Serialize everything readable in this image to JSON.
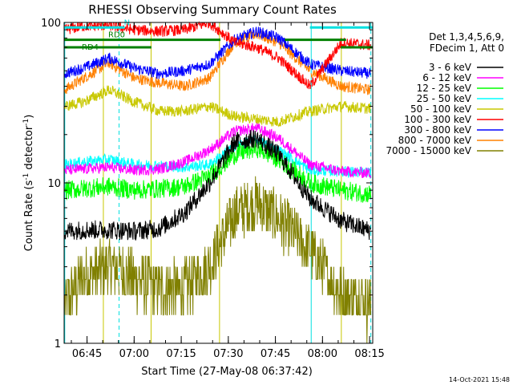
{
  "chart_data": {
    "type": "line",
    "title": "RHESSI Observing Summary Count Rates",
    "xlabel": "Start Time (27-May-08 06:37:42)",
    "ylabel_main": "Count Rate (s",
    "ylabel_sup": "-1",
    "ylabel_mid": " detector",
    "ylabel_end": ")",
    "yscale": "log",
    "ylim": [
      1,
      100
    ],
    "ytick_values": [
      1,
      10,
      100
    ],
    "ytick_labels": [
      "1",
      "10",
      "100"
    ],
    "xlim_minutes": [
      397.7,
      496.0
    ],
    "xtick_minutes": [
      405,
      420,
      435,
      450,
      465,
      480,
      495
    ],
    "xtick_labels": [
      "06:45",
      "07:00",
      "07:15",
      "07:30",
      "07:45",
      "08:00",
      "08:15"
    ],
    "minor_x_step": 5,
    "legend_header": [
      "Det 1,3,4,5,6,9,",
      "FDecim 1, Att 0"
    ],
    "footer_date": "14-Oct-2021 15:48",
    "flags": [
      {
        "label": "N",
        "color": "#00e0e0",
        "y": 93,
        "segments": [
          [
            397.7,
            417.0
          ],
          [
            476.0,
            496.0
          ]
        ]
      },
      {
        "label": "RD0",
        "color": "#008000",
        "y": 78,
        "segments": [
          [
            397.7,
            447.5
          ],
          [
            468.0,
            487.5
          ]
        ]
      },
      {
        "label": "RD4",
        "color": "#008000",
        "y": 70,
        "segments": [
          [
            397.7,
            425.5
          ],
          [
            485.8,
            496.0
          ]
        ]
      }
    ],
    "vlines": [
      {
        "x": 397.9,
        "color": "#00e0e0",
        "style": "solid"
      },
      {
        "x": 415.2,
        "color": "#00e0e0",
        "style": "dashed"
      },
      {
        "x": 476.4,
        "color": "#00e0e0",
        "style": "solid"
      },
      {
        "x": 495.4,
        "color": "#00e0e0",
        "style": "dashed"
      },
      {
        "x": 410.2,
        "color": "#c8c800",
        "style": "solid"
      },
      {
        "x": 425.4,
        "color": "#c8c800",
        "style": "solid"
      },
      {
        "x": 447.2,
        "color": "#c8c800",
        "style": "solid"
      },
      {
        "x": 486.0,
        "color": "#c8c800",
        "style": "solid"
      }
    ],
    "segments": [
      [
        397.9,
        415.2
      ],
      [
        415.2,
        476.4
      ],
      [
        476.4,
        495.4
      ]
    ],
    "series": [
      {
        "name": "3 - 6 keV",
        "color": "#000000",
        "values": [
          5.0,
          5.1,
          5.1,
          5.0,
          5.2,
          6.5,
          10.0,
          18.0,
          19.0,
          15.0,
          8.0,
          5.8,
          5.0
        ]
      },
      {
        "name": "6 - 12 keV",
        "color": "#ff00ff",
        "values": [
          12.0,
          12.2,
          12.5,
          12.0,
          12.2,
          13.5,
          16.0,
          21.0,
          22.0,
          19.0,
          13.0,
          11.8,
          11.5
        ]
      },
      {
        "name": "12 - 25 keV",
        "color": "#00ff00",
        "values": [
          9.0,
          9.2,
          9.5,
          9.0,
          9.2,
          9.5,
          11.0,
          15.0,
          16.5,
          14.0,
          10.0,
          9.0,
          8.5
        ]
      },
      {
        "name": "25 - 50 keV",
        "color": "#00ffff",
        "values": [
          13.0,
          13.5,
          14.0,
          13.0,
          12.8,
          12.5,
          13.0,
          17.0,
          18.5,
          16.0,
          12.0,
          11.8,
          11.5
        ]
      },
      {
        "name": "50 - 100 keV",
        "color": "#c8c800",
        "values": [
          30.0,
          32.0,
          38.0,
          32.0,
          28.0,
          28.0,
          30.0,
          26.0,
          25.0,
          24.0,
          28.0,
          30.0,
          29.0
        ]
      },
      {
        "name": "100 - 300 keV",
        "color": "#ff0000",
        "values": [
          90.0,
          95.0,
          96.0,
          90.0,
          88.0,
          90.0,
          100.0,
          75.0,
          70.0,
          60.0,
          40.0,
          75.0,
          72.0
        ]
      },
      {
        "name": "300 - 800 keV",
        "color": "#0000ff",
        "values": [
          48.0,
          52.0,
          60.0,
          52.0,
          48.0,
          50.0,
          55.0,
          78.0,
          88.0,
          80.0,
          55.0,
          50.0,
          48.0
        ]
      },
      {
        "name": "800 - 7000 keV",
        "color": "#ff8000",
        "values": [
          38.0,
          45.0,
          56.0,
          45.0,
          42.0,
          40.0,
          45.0,
          75.0,
          85.0,
          75.0,
          50.0,
          40.0,
          38.0
        ]
      },
      {
        "name": "7000 - 15000 keV",
        "color": "#808000",
        "values": [
          1.8,
          2.6,
          3.0,
          2.6,
          2.2,
          2.2,
          3.0,
          6.5,
          7.5,
          6.0,
          3.8,
          2.0,
          1.8
        ]
      }
    ],
    "series_x": [
      397.9,
      404.0,
      412.0,
      420.0,
      428.0,
      436.0,
      444.0,
      452.0,
      459.0,
      466.0,
      476.0,
      486.0,
      495.4
    ]
  }
}
